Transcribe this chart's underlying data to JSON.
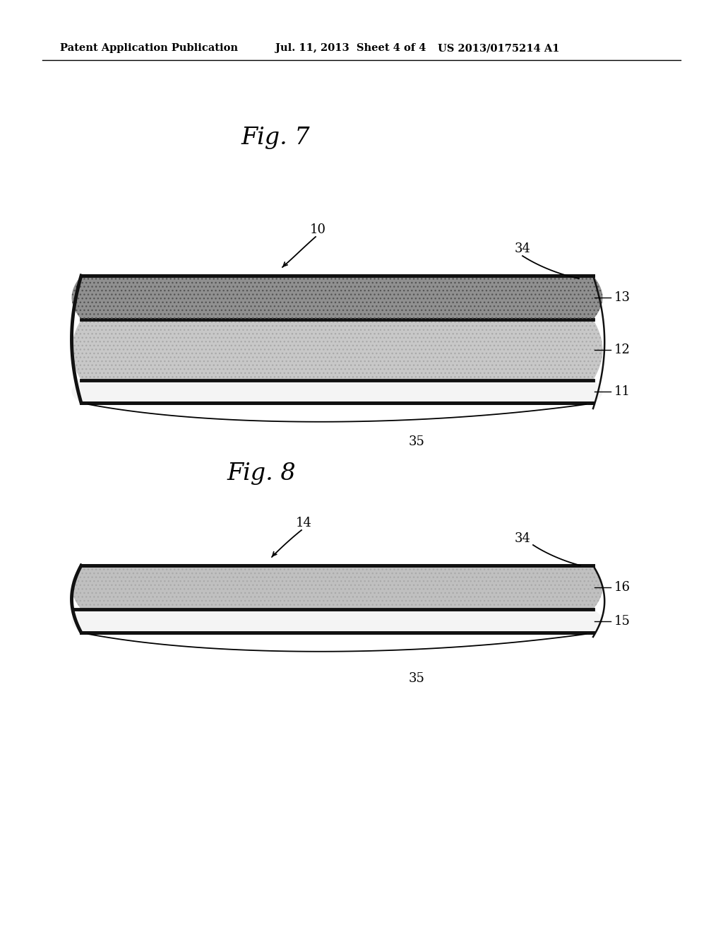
{
  "bg_color": "#ffffff",
  "header_left": "Patent Application Publication",
  "header_mid": "Jul. 11, 2013  Sheet 4 of 4",
  "header_right": "US 2013/0175214 A1",
  "fig7_title": "Fig. 7",
  "fig8_title": "Fig. 8",
  "fig7_ref_num": "10",
  "fig8_ref_num": "14",
  "layer13_color": "#909090",
  "layer12_color": "#c8c8c8",
  "layer11_color": "#f4f4f4",
  "layer16_color": "#c0c0c0",
  "layer15_color": "#f4f4f4",
  "border_color": "#111111",
  "label_color": "#111111"
}
